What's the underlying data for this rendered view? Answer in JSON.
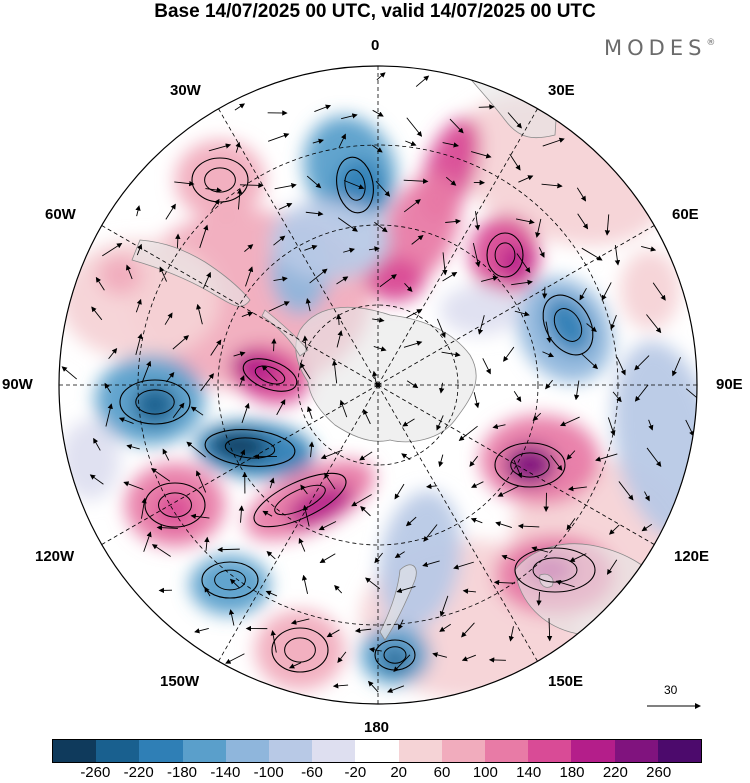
{
  "header": {
    "title": "Base 14/07/2025 00 UTC, valid 14/07/2025 00 UTC",
    "brand": "MODES",
    "brand_mark": "®"
  },
  "map": {
    "projection": "south polar stereographic",
    "meridian_labels": {
      "m0": "0",
      "m30e": "30E",
      "m60e": "60E",
      "m90e": "90E",
      "m120e": "120E",
      "m150e": "150E",
      "m180": "180",
      "m150w": "150W",
      "m120w": "120W",
      "m90w": "90W",
      "m60w": "60W",
      "m30w": "30W"
    },
    "wind_vector_reference": "30",
    "colors": {
      "land": "#e6e6e6",
      "background": "#ffffff"
    }
  },
  "colorbar": {
    "ticks": [
      "-260",
      "-220",
      "-180",
      "-140",
      "-100",
      "-60",
      "-20",
      "20",
      "60",
      "100",
      "140",
      "180",
      "220",
      "260"
    ],
    "colors": [
      "#0f3a5c",
      "#19608f",
      "#2f7fb6",
      "#5a9fcb",
      "#8fb6dc",
      "#b8c9e6",
      "#dedff0",
      "#ffffff",
      "#f5d3d6",
      "#f1acbd",
      "#e87ba6",
      "#d94b96",
      "#b41e8a",
      "#80137e",
      "#4c0a6c"
    ]
  }
}
